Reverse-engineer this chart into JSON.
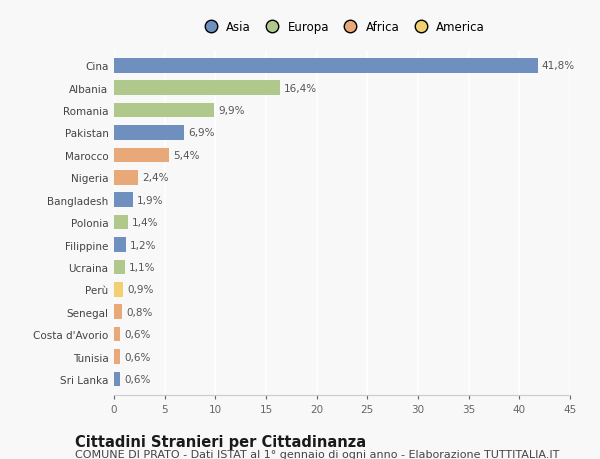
{
  "countries": [
    "Cina",
    "Albania",
    "Romania",
    "Pakistan",
    "Marocco",
    "Nigeria",
    "Bangladesh",
    "Polonia",
    "Filippine",
    "Ucraina",
    "Perù",
    "Senegal",
    "Costa d'Avorio",
    "Tunisia",
    "Sri Lanka"
  ],
  "values": [
    41.8,
    16.4,
    9.9,
    6.9,
    5.4,
    2.4,
    1.9,
    1.4,
    1.2,
    1.1,
    0.9,
    0.8,
    0.6,
    0.6,
    0.6
  ],
  "labels": [
    "41,8%",
    "16,4%",
    "9,9%",
    "6,9%",
    "5,4%",
    "2,4%",
    "1,9%",
    "1,4%",
    "1,2%",
    "1,1%",
    "0,9%",
    "0,8%",
    "0,6%",
    "0,6%",
    "0,6%"
  ],
  "continents": [
    "Asia",
    "Europa",
    "Europa",
    "Asia",
    "Africa",
    "Africa",
    "Asia",
    "Europa",
    "Asia",
    "Europa",
    "America",
    "Africa",
    "Africa",
    "Africa",
    "Asia"
  ],
  "colors": {
    "Asia": "#6f8fbe",
    "Europa": "#b0c88c",
    "Africa": "#e8a878",
    "America": "#f0d070"
  },
  "legend_order": [
    "Asia",
    "Europa",
    "Africa",
    "America"
  ],
  "legend_colors": [
    "#6f8fbe",
    "#b0c88c",
    "#e8a878",
    "#f0d070"
  ],
  "bg_color": "#f8f8f8",
  "grid_color": "#ffffff",
  "bar_height": 0.65,
  "xlim": [
    0,
    45
  ],
  "xticks": [
    0,
    5,
    10,
    15,
    20,
    25,
    30,
    35,
    40,
    45
  ],
  "title": "Cittadini Stranieri per Cittadinanza",
  "subtitle": "COMUNE DI PRATO - Dati ISTAT al 1° gennaio di ogni anno - Elaborazione TUTTITALIA.IT",
  "title_fontsize": 10.5,
  "subtitle_fontsize": 8,
  "label_fontsize": 7.5,
  "tick_fontsize": 7.5,
  "legend_fontsize": 8.5
}
